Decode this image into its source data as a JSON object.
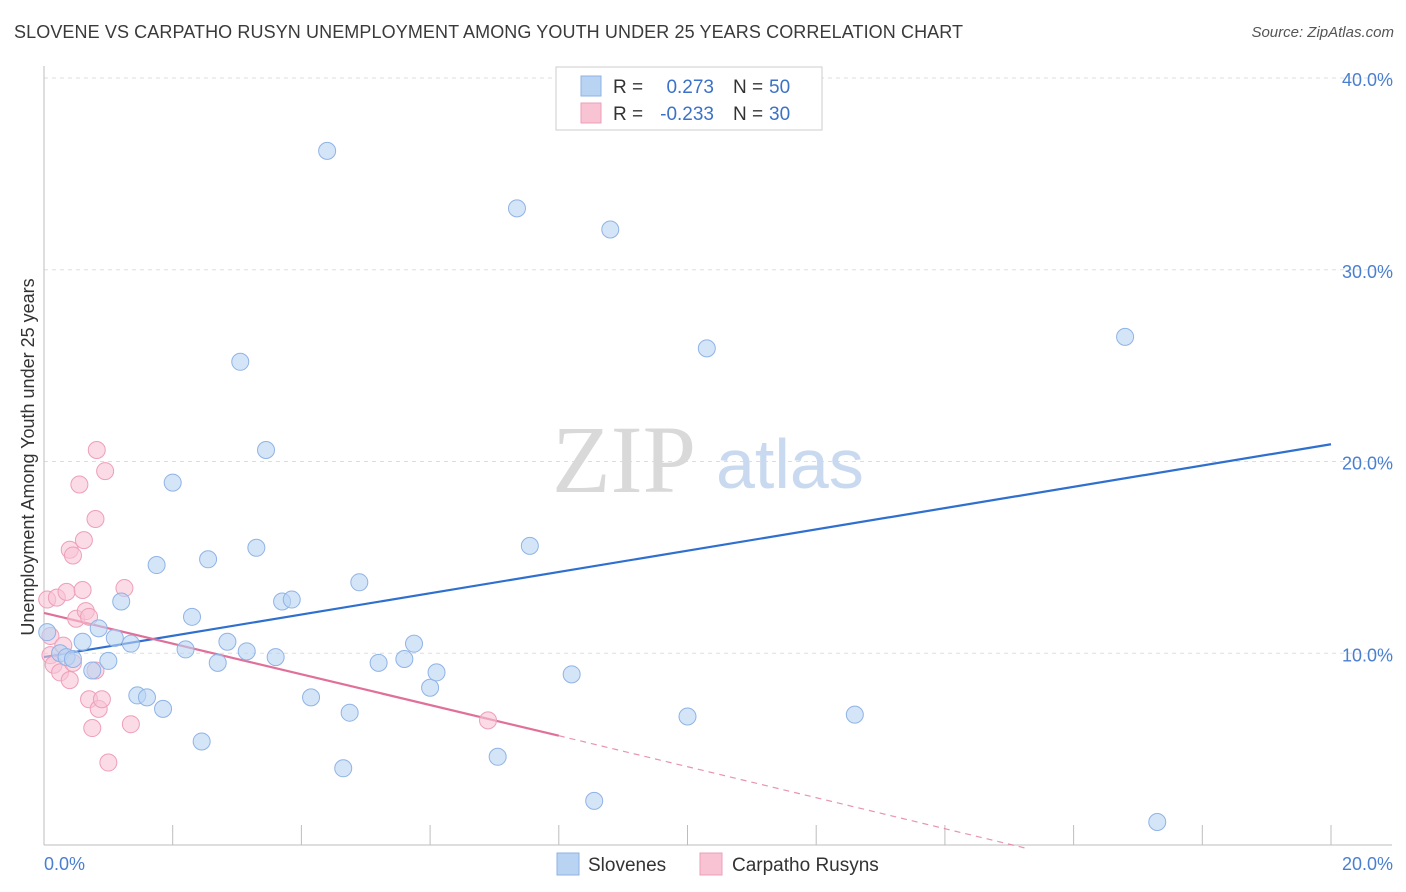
{
  "header": {
    "title": "SLOVENE VS CARPATHO RUSYN UNEMPLOYMENT AMONG YOUTH UNDER 25 YEARS CORRELATION CHART",
    "source": "Source: ZipAtlas.com"
  },
  "watermark": {
    "zip": "ZIP",
    "atlas": "atlas"
  },
  "colors": {
    "slovenes_fill": "#b9d3f3",
    "slovenes_stroke": "#8fb3e6",
    "slovenes_line": "#2f6fce",
    "rusyns_fill": "#f8c3d3",
    "rusyns_stroke": "#ee9fb8",
    "rusyns_line": "#e0709a",
    "tick_text": "#4a7fd0",
    "grid": "#dddddd"
  },
  "chart_data": {
    "type": "scatter",
    "xlabel": "",
    "ylabel": "Unemployment Among Youth under 25 years",
    "xlim": [
      0,
      20
    ],
    "ylim": [
      0,
      40
    ],
    "x_tick_labels": [
      {
        "value": 0,
        "label": "0.0%"
      },
      {
        "value": 20,
        "label": "20.0%"
      }
    ],
    "y_tick_labels": [
      {
        "value": 10,
        "label": "10.0%"
      },
      {
        "value": 20,
        "label": "20.0%"
      },
      {
        "value": 30,
        "label": "30.0%"
      },
      {
        "value": 40,
        "label": "40.0%"
      }
    ],
    "grid": "horizontal dashed",
    "legend": {
      "placement": "top-center",
      "rows": [
        {
          "r_label": "R =",
          "r_value": "0.273",
          "n_label": "N =",
          "n_value": "50"
        },
        {
          "r_label": "R =",
          "r_value": "-0.233",
          "n_label": "N =",
          "n_value": "30"
        }
      ],
      "bottom": [
        "Slovenes",
        "Carpatho Rusyns"
      ]
    },
    "series": [
      {
        "name": "Slovenes",
        "r": 0.273,
        "n": 50,
        "trend": {
          "x0": 0,
          "y0": 9.8,
          "x1": 20,
          "y1": 20.9
        },
        "points": [
          [
            0.05,
            11.1
          ],
          [
            0.25,
            10.0
          ],
          [
            0.35,
            9.8
          ],
          [
            0.45,
            9.7
          ],
          [
            0.6,
            10.6
          ],
          [
            0.75,
            9.1
          ],
          [
            0.85,
            11.3
          ],
          [
            1.0,
            9.6
          ],
          [
            1.1,
            10.8
          ],
          [
            1.2,
            12.7
          ],
          [
            1.35,
            10.5
          ],
          [
            1.45,
            7.8
          ],
          [
            1.6,
            7.7
          ],
          [
            1.75,
            14.6
          ],
          [
            1.85,
            7.1
          ],
          [
            2.0,
            18.9
          ],
          [
            2.2,
            10.2
          ],
          [
            2.3,
            11.9
          ],
          [
            2.45,
            5.4
          ],
          [
            2.55,
            14.9
          ],
          [
            2.7,
            9.5
          ],
          [
            2.85,
            10.6
          ],
          [
            3.05,
            25.2
          ],
          [
            3.15,
            10.1
          ],
          [
            3.3,
            15.5
          ],
          [
            3.45,
            20.6
          ],
          [
            3.6,
            9.8
          ],
          [
            3.7,
            12.7
          ],
          [
            3.85,
            12.8
          ],
          [
            4.15,
            7.7
          ],
          [
            4.4,
            36.2
          ],
          [
            4.65,
            4.0
          ],
          [
            4.75,
            6.9
          ],
          [
            4.9,
            13.7
          ],
          [
            5.2,
            9.5
          ],
          [
            5.6,
            9.7
          ],
          [
            5.75,
            10.5
          ],
          [
            6.0,
            8.2
          ],
          [
            6.1,
            9.0
          ],
          [
            7.05,
            4.6
          ],
          [
            7.35,
            33.2
          ],
          [
            7.55,
            15.6
          ],
          [
            8.2,
            8.9
          ],
          [
            8.55,
            2.3
          ],
          [
            8.8,
            32.1
          ],
          [
            10.0,
            6.7
          ],
          [
            10.3,
            25.9
          ],
          [
            12.6,
            6.8
          ],
          [
            16.8,
            26.5
          ],
          [
            17.3,
            1.2
          ]
        ]
      },
      {
        "name": "Carpatho Rusyns",
        "r": -0.233,
        "n": 30,
        "trend": {
          "x0": 0,
          "y0": 12.1,
          "x1": 8.0,
          "y1": 5.7
        },
        "trend_dashed": {
          "x0": 8.0,
          "y0": 5.7,
          "x1": 15.3,
          "y1": -0.2
        },
        "points": [
          [
            0.05,
            12.8
          ],
          [
            0.1,
            10.9
          ],
          [
            0.1,
            9.9
          ],
          [
            0.15,
            9.4
          ],
          [
            0.2,
            12.9
          ],
          [
            0.25,
            9.0
          ],
          [
            0.3,
            10.4
          ],
          [
            0.35,
            13.2
          ],
          [
            0.4,
            8.6
          ],
          [
            0.4,
            15.4
          ],
          [
            0.45,
            9.5
          ],
          [
            0.45,
            15.1
          ],
          [
            0.5,
            11.8
          ],
          [
            0.55,
            18.8
          ],
          [
            0.6,
            13.3
          ],
          [
            0.62,
            15.9
          ],
          [
            0.65,
            12.2
          ],
          [
            0.7,
            7.6
          ],
          [
            0.7,
            11.9
          ],
          [
            0.75,
            6.1
          ],
          [
            0.8,
            9.1
          ],
          [
            0.8,
            17.0
          ],
          [
            0.82,
            20.6
          ],
          [
            0.85,
            7.1
          ],
          [
            0.9,
            7.6
          ],
          [
            0.95,
            19.5
          ],
          [
            1.0,
            4.3
          ],
          [
            1.25,
            13.4
          ],
          [
            1.35,
            6.3
          ],
          [
            6.9,
            6.5
          ]
        ]
      }
    ]
  }
}
